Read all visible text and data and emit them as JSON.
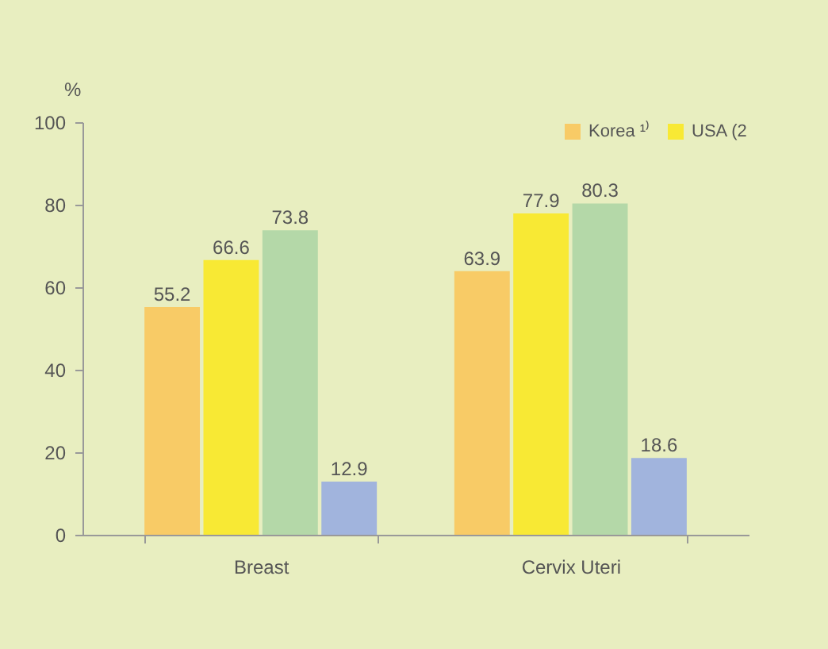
{
  "chart_data": {
    "type": "bar",
    "ylabel": "%",
    "categories": [
      "Breast",
      "Cervix Uteri"
    ],
    "series": [
      {
        "name": "Korea ¹⁾",
        "color": "#f8cb66",
        "values": [
          55.2,
          63.9
        ]
      },
      {
        "name": "USA (2",
        "color": "#f8e934",
        "values": [
          66.6,
          77.9
        ]
      },
      {
        "color": "#b4d8a8",
        "values": [
          73.8,
          80.3
        ]
      },
      {
        "color": "#a1b4dd",
        "values": [
          12.9,
          18.6
        ]
      }
    ],
    "ylim": [
      0,
      100
    ],
    "yticks": [
      0,
      20,
      40,
      60,
      80,
      100
    ],
    "data_labels": true,
    "legend": "top right",
    "grid": false
  }
}
